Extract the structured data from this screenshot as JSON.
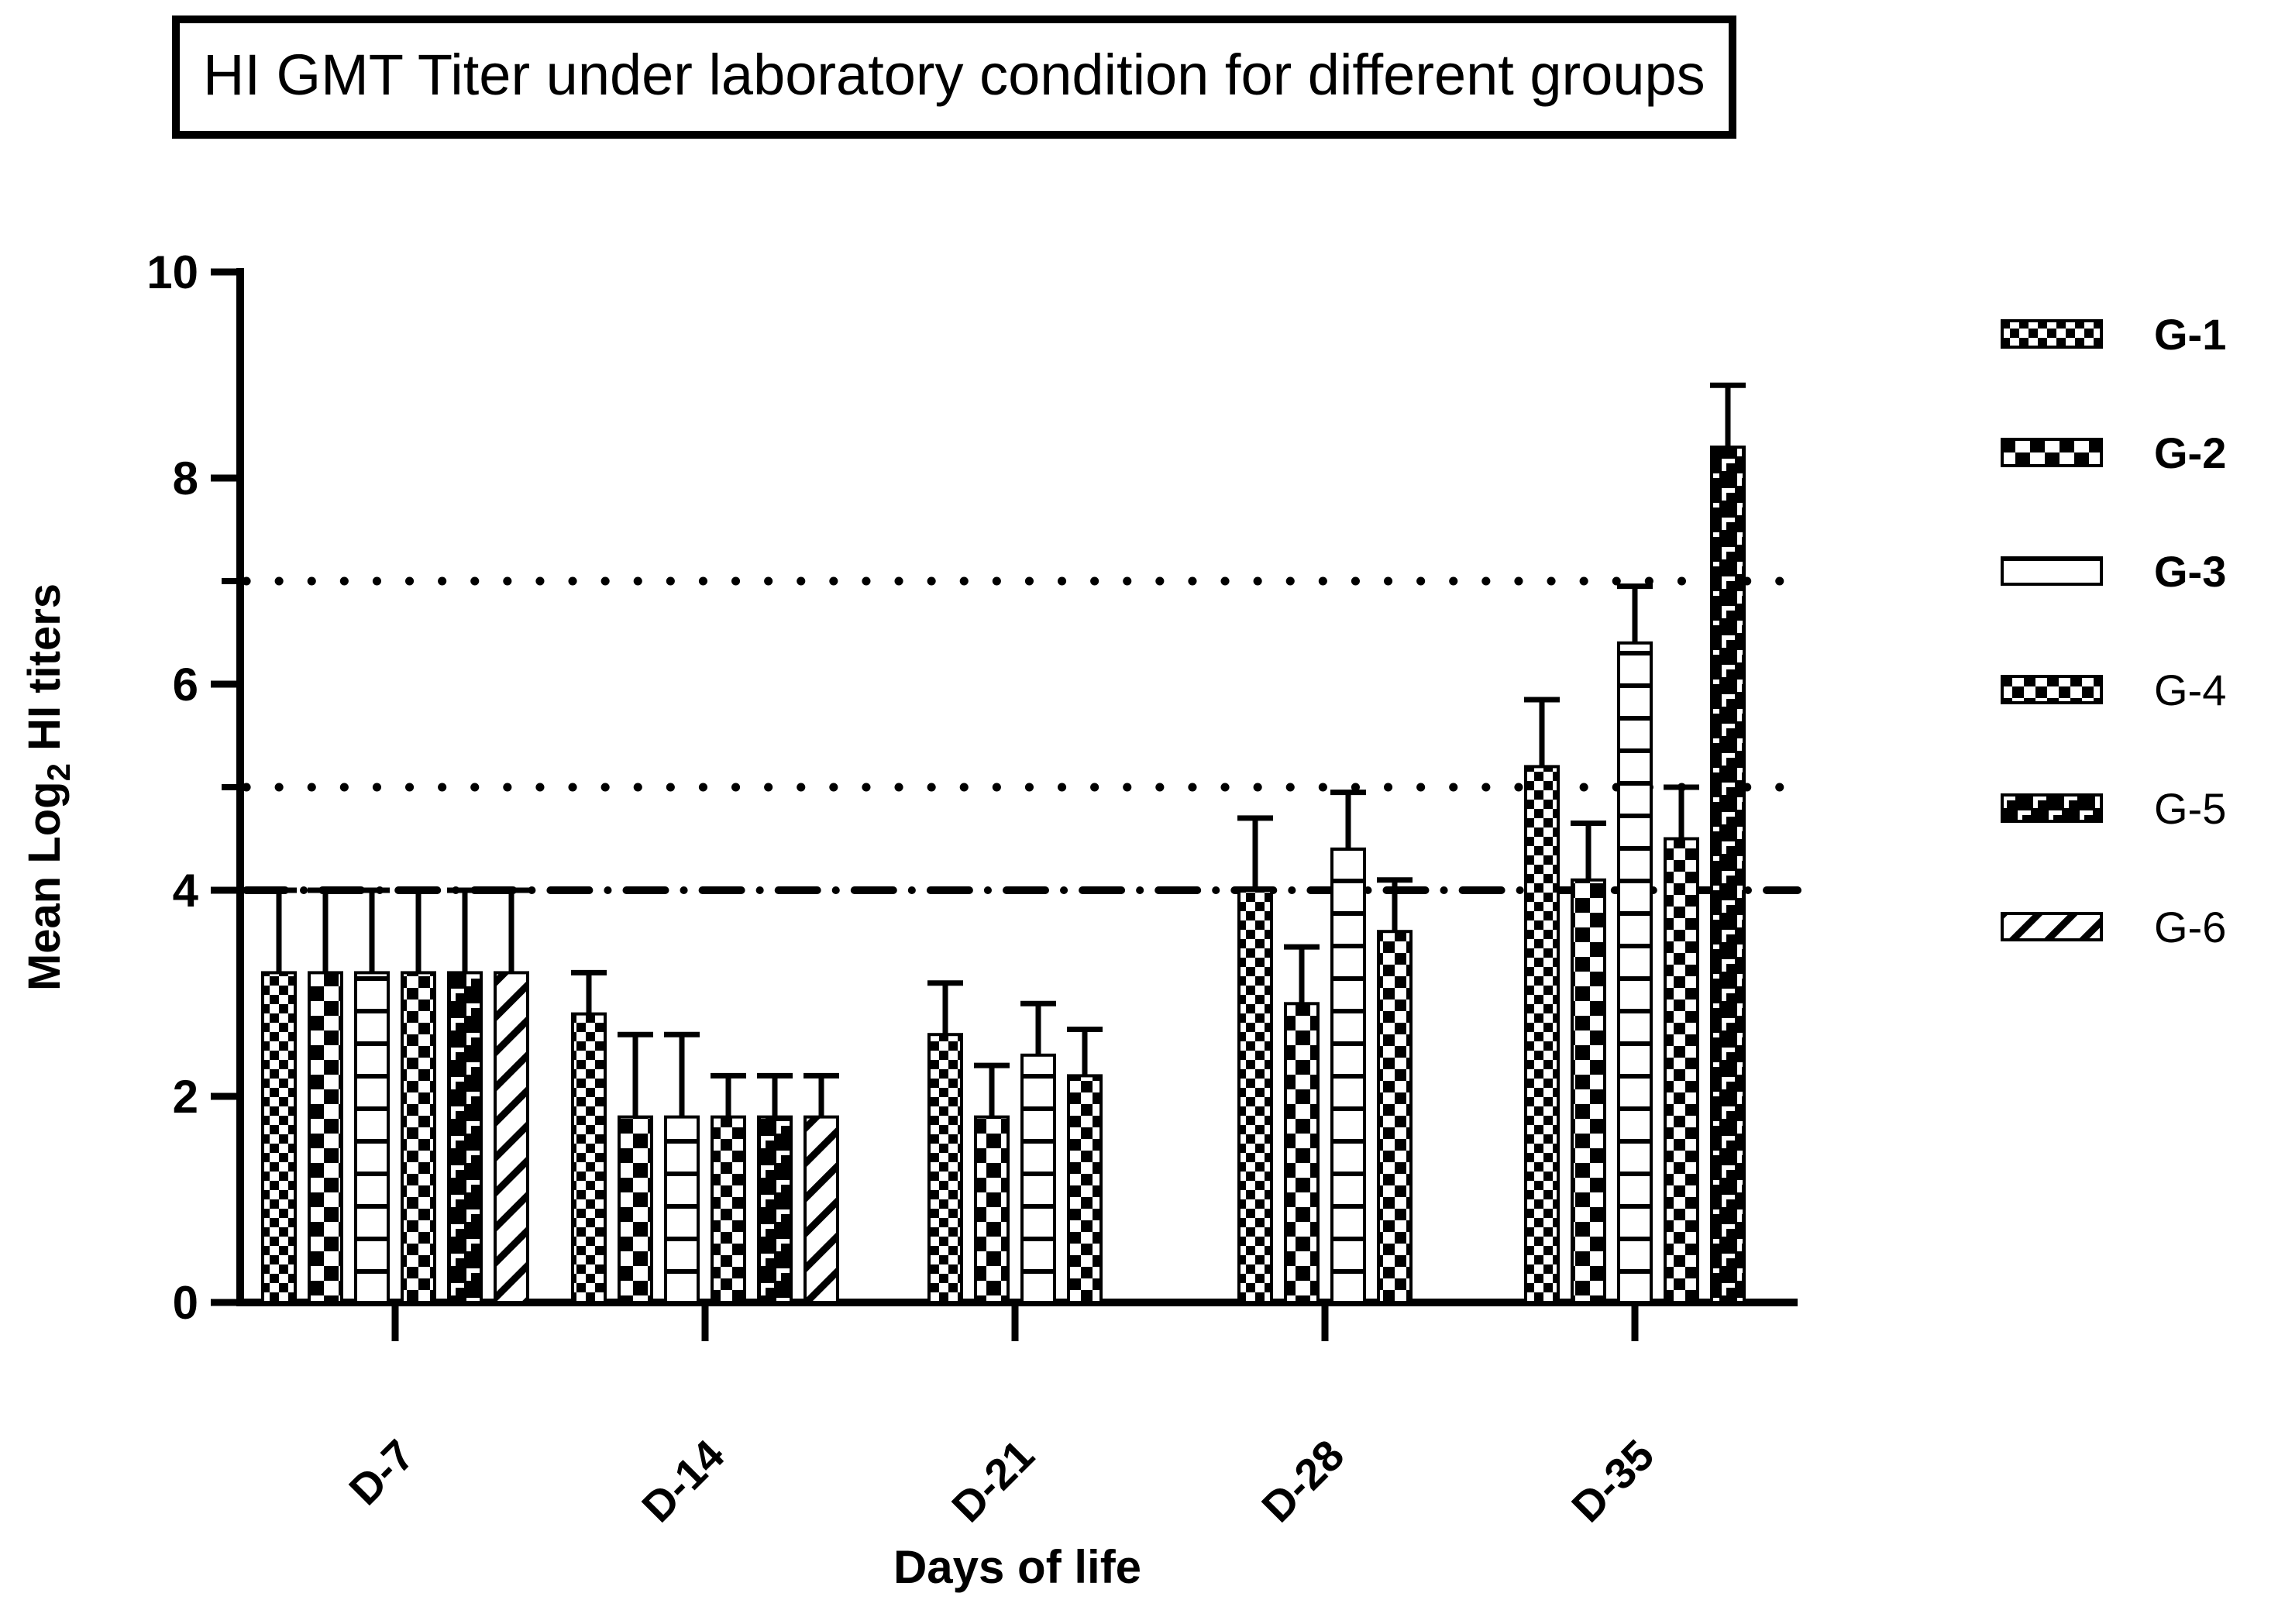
{
  "page": {
    "background": "#ffffff",
    "foreground": "#000000"
  },
  "chart_data": {
    "type": "bar",
    "title": "HI GMT Titer under laboratory condition for different groups",
    "xlabel": "Days of life",
    "ylabel": "Mean Log2 HI titers",
    "ylabel_parts": {
      "prefix": "Mean Log",
      "sub": "2",
      "suffix": " HI titers"
    },
    "ylim": [
      0,
      10
    ],
    "yticks": [
      0,
      2,
      4,
      6,
      8,
      10
    ],
    "minor_yticks": [
      5,
      7
    ],
    "grid": false,
    "legend_position": "right",
    "reference_lines": [
      {
        "y": 7,
        "style": "dotted"
      },
      {
        "y": 5,
        "style": "dotted"
      },
      {
        "y": 4,
        "style": "dash-dot"
      }
    ],
    "categories": [
      "D-7",
      "D-14",
      "D-21",
      "D-28",
      "D-35"
    ],
    "series": [
      {
        "name": "G-1",
        "pattern": "fine-checker",
        "values": [
          3.2,
          2.8,
          2.6,
          4.0,
          5.2
        ],
        "error_bar_tops": [
          4.0,
          3.2,
          3.1,
          4.7,
          5.85
        ]
      },
      {
        "name": "G-2",
        "pattern": "coarse-checker",
        "values": [
          3.2,
          1.8,
          1.8,
          2.9,
          4.1
        ],
        "error_bar_tops": [
          4.0,
          2.6,
          2.3,
          3.45,
          4.65
        ]
      },
      {
        "name": "G-3",
        "pattern": "horizontal-lines",
        "values": [
          3.2,
          1.8,
          2.4,
          4.4,
          6.4
        ],
        "error_bar_tops": [
          4.0,
          2.6,
          2.9,
          4.95,
          6.95
        ]
      },
      {
        "name": "G-4",
        "pattern": "fine-checker-large",
        "values": [
          3.2,
          1.8,
          2.2,
          3.6,
          4.5
        ],
        "error_bar_tops": [
          4.0,
          2.2,
          2.65,
          4.1,
          5.0
        ]
      },
      {
        "name": "G-5",
        "pattern": "bricks",
        "values": [
          3.2,
          1.8,
          null,
          null,
          8.3
        ],
        "error_bar_tops": [
          4.0,
          2.2,
          null,
          null,
          8.9
        ]
      },
      {
        "name": "G-6",
        "pattern": "diagonal-stripes",
        "values": [
          3.2,
          1.8,
          null,
          null,
          null
        ],
        "error_bar_tops": [
          4.0,
          2.2,
          null,
          null,
          null
        ]
      }
    ],
    "legend": [
      {
        "label": "G-1",
        "bold": true
      },
      {
        "label": "G-2",
        "bold": true
      },
      {
        "label": "G-3",
        "bold": true
      },
      {
        "label": "G-4",
        "bold": false
      },
      {
        "label": "G-5",
        "bold": false
      },
      {
        "label": "G-6",
        "bold": false
      }
    ]
  }
}
